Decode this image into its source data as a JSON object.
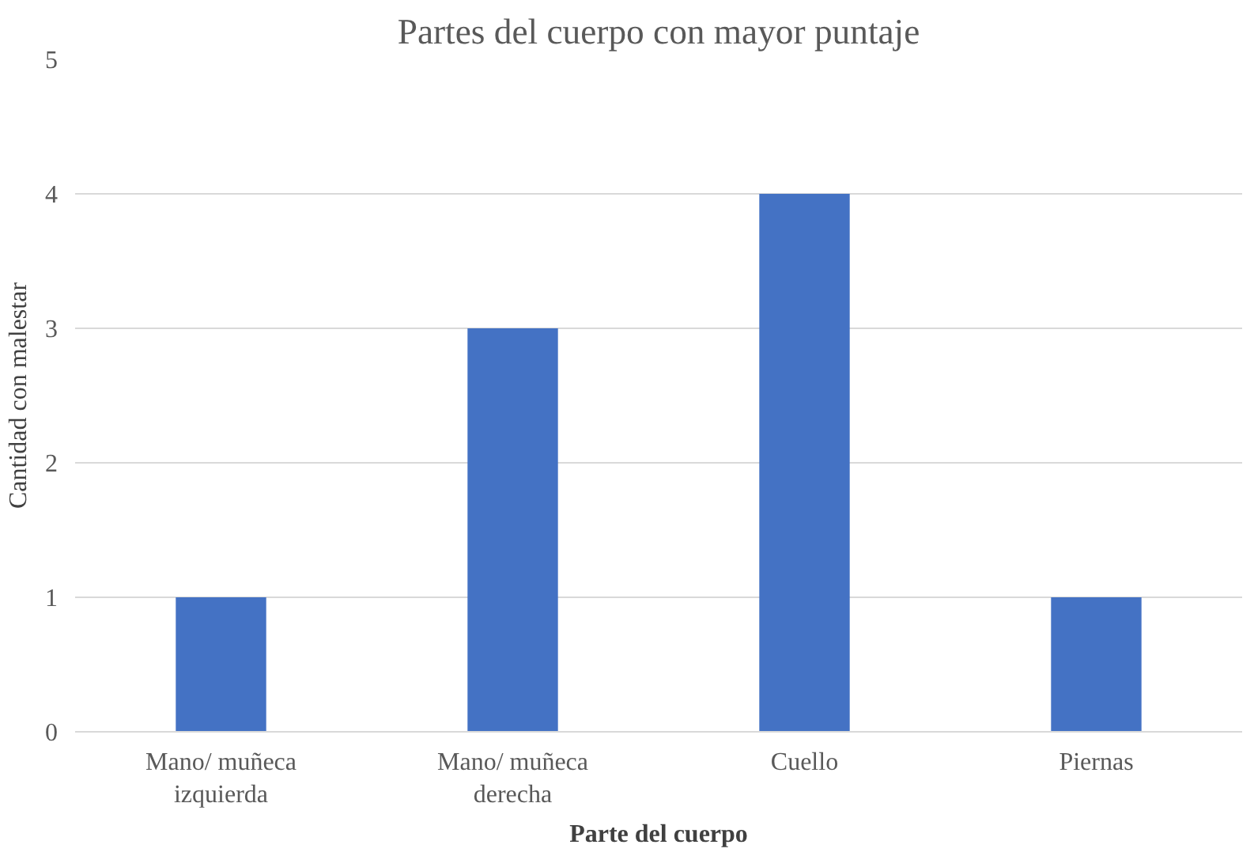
{
  "chart_data": {
    "type": "bar",
    "title": "Partes del cuerpo con mayor puntaje",
    "xlabel": "Parte del cuerpo",
    "ylabel": "Cantidad con malestar",
    "categories": [
      "Mano/ muñeca izquierda",
      "Mano/ muñeca derecha",
      "Cuello",
      "Piernas"
    ],
    "values": [
      1,
      3,
      4,
      1
    ],
    "color": "#4472c4",
    "ylim": [
      0,
      5
    ],
    "yticks": [
      0,
      1,
      2,
      3,
      4,
      5
    ],
    "grid": "y"
  }
}
